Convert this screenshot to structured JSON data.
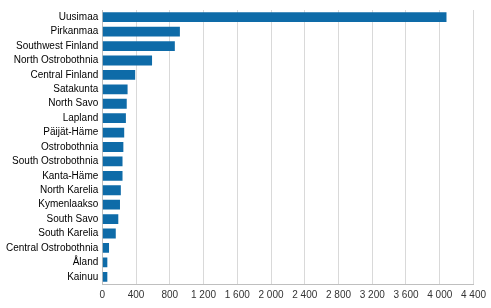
{
  "chart_data": {
    "type": "bar",
    "orientation": "horizontal",
    "categories": [
      "Uusimaa",
      "Pirkanmaa",
      "Southwest Finland",
      "North Ostrobothnia",
      "Central Finland",
      "Satakunta",
      "North Savo",
      "Lapland",
      "Päijät-Häme",
      "Ostrobothnia",
      "South Ostrobothnia",
      "Kanta-Häme",
      "North Karelia",
      "Kymenlaakso",
      "South Savo",
      "South Karelia",
      "Central Ostrobothnia",
      "Åland",
      "Kainuu"
    ],
    "values": [
      4080,
      920,
      860,
      590,
      390,
      300,
      290,
      280,
      260,
      250,
      240,
      240,
      220,
      210,
      190,
      160,
      80,
      60,
      60
    ],
    "color": "#0e6ba8",
    "xlim": [
      0,
      4400
    ],
    "xticks": [
      0,
      400,
      800,
      {
        "value": 1200,
        "label": "1 200"
      },
      {
        "value": 1600,
        "label": "1 600"
      },
      {
        "value": 2000,
        "label": "2 000"
      },
      {
        "value": 2400,
        "label": "2 400"
      },
      {
        "value": 2800,
        "label": "2 800"
      },
      {
        "value": 3200,
        "label": "3 200"
      },
      {
        "value": 3600,
        "label": "3 600"
      },
      {
        "value": 4000,
        "label": "4 000"
      },
      {
        "value": 4400,
        "label": "4 400"
      }
    ],
    "grid": true
  }
}
